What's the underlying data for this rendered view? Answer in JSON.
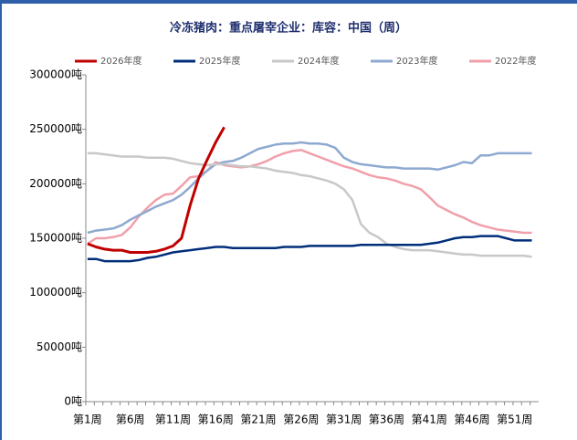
{
  "chart_data": {
    "type": "line",
    "title": "冷冻猪肉：重点屠宰企业：库容：中国（周）",
    "categories": [
      "第1周",
      null,
      null,
      null,
      null,
      "第6周",
      null,
      null,
      null,
      null,
      "第11周",
      null,
      null,
      null,
      null,
      "第16周",
      null,
      null,
      null,
      null,
      "第21周",
      null,
      null,
      null,
      null,
      "第26周",
      null,
      null,
      null,
      null,
      "第31周",
      null,
      null,
      null,
      null,
      "第36周",
      null,
      null,
      null,
      null,
      "第41周",
      null,
      null,
      null,
      null,
      "第46周",
      null,
      null,
      null,
      null,
      "第51周",
      null,
      null
    ],
    "ylim": [
      0,
      300000
    ],
    "yticks": [
      {
        "value": 0,
        "label": "0吨"
      },
      {
        "value": 50000,
        "label": "50000吨"
      },
      {
        "value": 100000,
        "label": "100000吨"
      },
      {
        "value": 150000,
        "label": "150000吨"
      },
      {
        "value": 200000,
        "label": "200000吨"
      },
      {
        "value": 250000,
        "label": "250000吨"
      },
      {
        "value": 300000,
        "label": "300000吨"
      }
    ],
    "grid": false,
    "legend": "top",
    "series": [
      {
        "name": "2026年度",
        "color": "#c00000",
        "values": [
          145000,
          142000,
          140000,
          139000,
          139000,
          137000,
          137000,
          137000,
          138000,
          140000,
          143000,
          150000,
          180000,
          205000,
          222000,
          238000,
          252000,
          null,
          null,
          null,
          null,
          null,
          null,
          null,
          null,
          null,
          null,
          null,
          null,
          null,
          null,
          null,
          null,
          null,
          null,
          null,
          null,
          null,
          null,
          null,
          null,
          null,
          null,
          null,
          null,
          null,
          null,
          null,
          null,
          null,
          null,
          null,
          null
        ]
      },
      {
        "name": "2025年度",
        "color": "#002e7a",
        "values": [
          131000,
          131000,
          129000,
          129000,
          129000,
          129000,
          130000,
          132000,
          133000,
          135000,
          137000,
          138000,
          139000,
          140000,
          141000,
          142000,
          142000,
          141000,
          141000,
          141000,
          141000,
          141000,
          141000,
          142000,
          142000,
          142000,
          143000,
          143000,
          143000,
          143000,
          143000,
          143000,
          144000,
          144000,
          144000,
          144000,
          144000,
          144000,
          144000,
          144000,
          145000,
          146000,
          148000,
          150000,
          151000,
          151000,
          152000,
          152000,
          152000,
          150000,
          148000,
          148000,
          148000
        ]
      },
      {
        "name": "2024年度",
        "color": "#c8c8c8",
        "values": [
          228000,
          228000,
          227000,
          226000,
          225000,
          225000,
          225000,
          224000,
          224000,
          224000,
          223000,
          221000,
          219000,
          218000,
          217000,
          218000,
          218000,
          217000,
          216000,
          216000,
          215000,
          214000,
          212000,
          211000,
          210000,
          208000,
          207000,
          205000,
          203000,
          200000,
          195000,
          185000,
          163000,
          155000,
          151000,
          145000,
          142000,
          140000,
          139000,
          139000,
          139000,
          138000,
          137000,
          136000,
          135000,
          135000,
          134000,
          134000,
          134000,
          134000,
          134000,
          134000,
          133000
        ]
      },
      {
        "name": "2023年度",
        "color": "#8ea9d0",
        "values": [
          155000,
          157000,
          158000,
          159000,
          162000,
          167000,
          171000,
          175000,
          179000,
          182000,
          185000,
          190000,
          197000,
          205000,
          212000,
          218000,
          220000,
          221000,
          224000,
          228000,
          232000,
          234000,
          236000,
          237000,
          237000,
          238000,
          237000,
          237000,
          236000,
          233000,
          224000,
          220000,
          218000,
          217000,
          216000,
          215000,
          215000,
          214000,
          214000,
          214000,
          214000,
          213000,
          215000,
          217000,
          220000,
          219000,
          226000,
          226000,
          228000,
          228000,
          228000,
          228000,
          228000
        ]
      },
      {
        "name": "2022年度",
        "color": "#f0a0aa",
        "values": [
          145000,
          150000,
          150000,
          151000,
          153000,
          160000,
          170000,
          178000,
          185000,
          190000,
          191000,
          198000,
          206000,
          207000,
          212000,
          220000,
          217000,
          216000,
          215000,
          216000,
          218000,
          221000,
          225000,
          228000,
          230000,
          231000,
          228000,
          225000,
          222000,
          219000,
          216000,
          214000,
          211000,
          208000,
          206000,
          205000,
          203000,
          200000,
          198000,
          195000,
          188000,
          180000,
          176000,
          172000,
          169000,
          165000,
          162000,
          160000,
          158000,
          157000,
          156000,
          155000,
          155000
        ]
      }
    ]
  }
}
